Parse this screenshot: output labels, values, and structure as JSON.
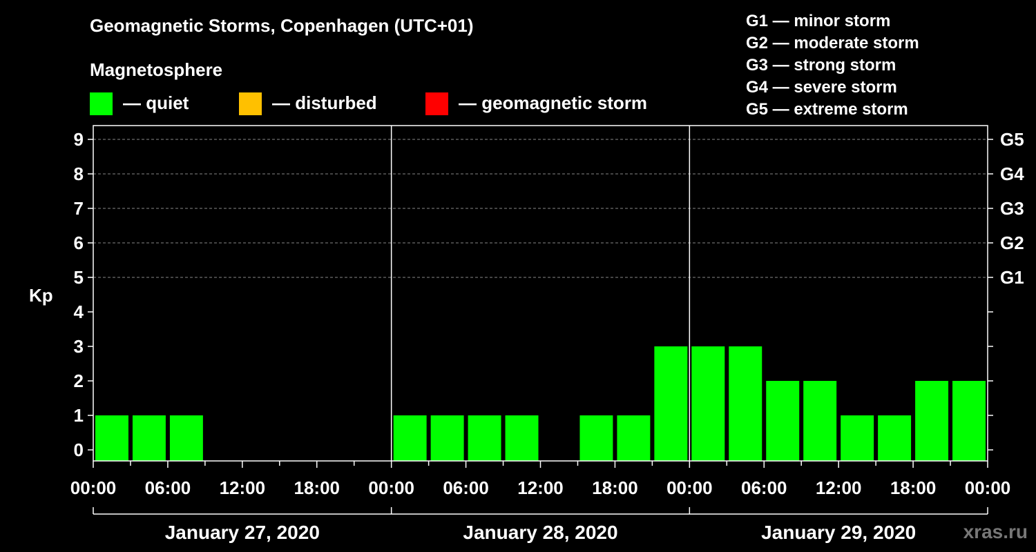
{
  "header": {
    "title": "Geomagnetic Storms, Copenhagen (UTC+01)",
    "magnetosphere_label": "Magnetosphere"
  },
  "legend": {
    "items": [
      {
        "label": "— quiet",
        "color": "#00ff00"
      },
      {
        "label": "— disturbed",
        "color": "#ffc000"
      },
      {
        "label": "— geomagnetic storm",
        "color": "#ff0000"
      }
    ]
  },
  "storm_scale": [
    "G1 — minor storm",
    "G2 — moderate storm",
    "G3 — strong storm",
    "G4 — severe storm",
    "G5 — extreme storm"
  ],
  "watermark": "xras.ru",
  "chart_data": {
    "type": "bar",
    "ylabel": "Kp",
    "ylim": [
      0,
      9
    ],
    "y_ticks": [
      "0",
      "1",
      "2",
      "3",
      "4",
      "5",
      "6",
      "7",
      "8",
      "9"
    ],
    "right_ticks": [
      {
        "value": 5,
        "label": "G1"
      },
      {
        "value": 6,
        "label": "G2"
      },
      {
        "value": 7,
        "label": "G3"
      },
      {
        "value": 8,
        "label": "G4"
      },
      {
        "value": 9,
        "label": "G5"
      }
    ],
    "x_tick_labels": [
      "00:00",
      "06:00",
      "12:00",
      "18:00",
      "00:00",
      "06:00",
      "12:00",
      "18:00",
      "00:00",
      "06:00",
      "12:00",
      "18:00",
      "00:00"
    ],
    "day_labels": [
      "January 27, 2020",
      "January 28, 2020",
      "January 29, 2020"
    ],
    "grid": "dashed horizontal",
    "bar_color": "#00ff00",
    "bar_interval_hours": 3,
    "values": [
      1,
      1,
      1,
      null,
      null,
      null,
      null,
      null,
      1,
      1,
      1,
      1,
      null,
      1,
      1,
      3,
      3,
      3,
      2,
      2,
      1,
      1,
      2,
      2
    ]
  }
}
